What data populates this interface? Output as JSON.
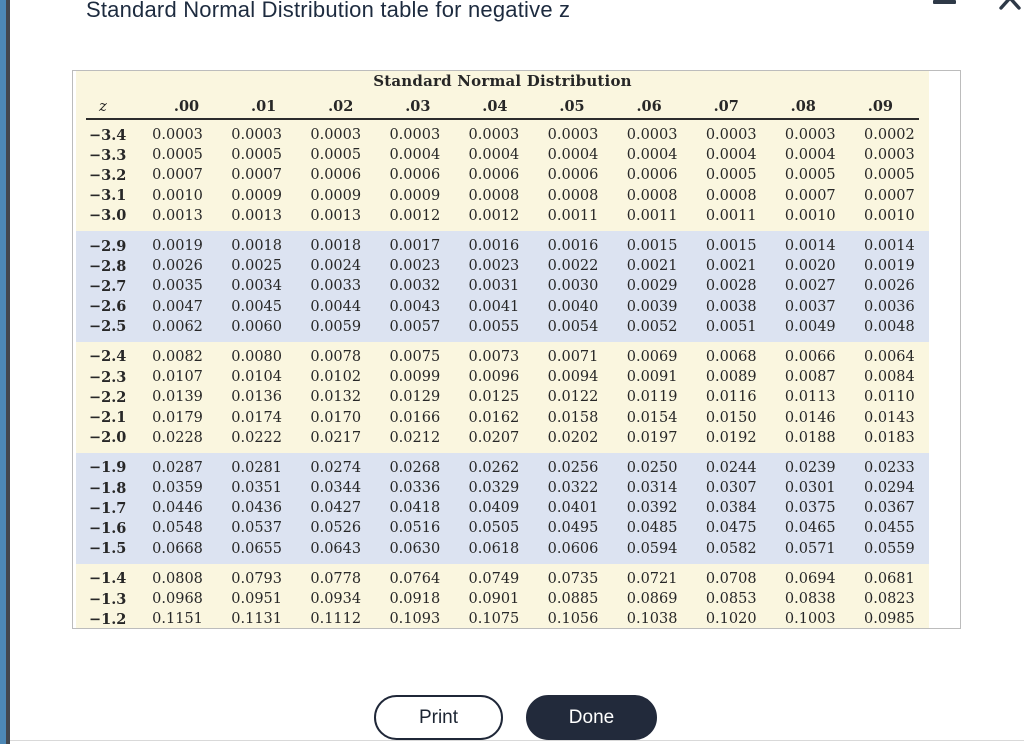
{
  "window": {
    "title": "Standard Normal Distribution table for negative z"
  },
  "buttons": {
    "print_label": "Print",
    "done_label": "Done"
  },
  "colors": {
    "accent_navy": "#222a3b",
    "table_cream": "#faf6df",
    "table_band_blue": "#dce3f1",
    "heading_navy": "#1d2b3f"
  },
  "table": {
    "title": "Standard Normal Distribution",
    "columns": [
      "z",
      ".00",
      ".01",
      ".02",
      ".03",
      ".04",
      ".05",
      ".06",
      ".07",
      ".08",
      ".09"
    ],
    "groups": [
      {
        "band": "cream",
        "rows": [
          {
            "z": "−3.4",
            "values": [
              "0.0003",
              "0.0003",
              "0.0003",
              "0.0003",
              "0.0003",
              "0.0003",
              "0.0003",
              "0.0003",
              "0.0003",
              "0.0002"
            ]
          },
          {
            "z": "−3.3",
            "values": [
              "0.0005",
              "0.0005",
              "0.0005",
              "0.0004",
              "0.0004",
              "0.0004",
              "0.0004",
              "0.0004",
              "0.0004",
              "0.0003"
            ]
          },
          {
            "z": "−3.2",
            "values": [
              "0.0007",
              "0.0007",
              "0.0006",
              "0.0006",
              "0.0006",
              "0.0006",
              "0.0006",
              "0.0005",
              "0.0005",
              "0.0005"
            ]
          },
          {
            "z": "−3.1",
            "values": [
              "0.0010",
              "0.0009",
              "0.0009",
              "0.0009",
              "0.0008",
              "0.0008",
              "0.0008",
              "0.0008",
              "0.0007",
              "0.0007"
            ]
          },
          {
            "z": "−3.0",
            "values": [
              "0.0013",
              "0.0013",
              "0.0013",
              "0.0012",
              "0.0012",
              "0.0011",
              "0.0011",
              "0.0011",
              "0.0010",
              "0.0010"
            ]
          }
        ]
      },
      {
        "band": "blue",
        "rows": [
          {
            "z": "−2.9",
            "values": [
              "0.0019",
              "0.0018",
              "0.0018",
              "0.0017",
              "0.0016",
              "0.0016",
              "0.0015",
              "0.0015",
              "0.0014",
              "0.0014"
            ]
          },
          {
            "z": "−2.8",
            "values": [
              "0.0026",
              "0.0025",
              "0.0024",
              "0.0023",
              "0.0023",
              "0.0022",
              "0.0021",
              "0.0021",
              "0.0020",
              "0.0019"
            ]
          },
          {
            "z": "−2.7",
            "values": [
              "0.0035",
              "0.0034",
              "0.0033",
              "0.0032",
              "0.0031",
              "0.0030",
              "0.0029",
              "0.0028",
              "0.0027",
              "0.0026"
            ]
          },
          {
            "z": "−2.6",
            "values": [
              "0.0047",
              "0.0045",
              "0.0044",
              "0.0043",
              "0.0041",
              "0.0040",
              "0.0039",
              "0.0038",
              "0.0037",
              "0.0036"
            ]
          },
          {
            "z": "−2.5",
            "values": [
              "0.0062",
              "0.0060",
              "0.0059",
              "0.0057",
              "0.0055",
              "0.0054",
              "0.0052",
              "0.0051",
              "0.0049",
              "0.0048"
            ]
          }
        ]
      },
      {
        "band": "cream",
        "rows": [
          {
            "z": "−2.4",
            "values": [
              "0.0082",
              "0.0080",
              "0.0078",
              "0.0075",
              "0.0073",
              "0.0071",
              "0.0069",
              "0.0068",
              "0.0066",
              "0.0064"
            ]
          },
          {
            "z": "−2.3",
            "values": [
              "0.0107",
              "0.0104",
              "0.0102",
              "0.0099",
              "0.0096",
              "0.0094",
              "0.0091",
              "0.0089",
              "0.0087",
              "0.0084"
            ]
          },
          {
            "z": "−2.2",
            "values": [
              "0.0139",
              "0.0136",
              "0.0132",
              "0.0129",
              "0.0125",
              "0.0122",
              "0.0119",
              "0.0116",
              "0.0113",
              "0.0110"
            ]
          },
          {
            "z": "−2.1",
            "values": [
              "0.0179",
              "0.0174",
              "0.0170",
              "0.0166",
              "0.0162",
              "0.0158",
              "0.0154",
              "0.0150",
              "0.0146",
              "0.0143"
            ]
          },
          {
            "z": "−2.0",
            "values": [
              "0.0228",
              "0.0222",
              "0.0217",
              "0.0212",
              "0.0207",
              "0.0202",
              "0.0197",
              "0.0192",
              "0.0188",
              "0.0183"
            ]
          }
        ]
      },
      {
        "band": "blue",
        "rows": [
          {
            "z": "−1.9",
            "values": [
              "0.0287",
              "0.0281",
              "0.0274",
              "0.0268",
              "0.0262",
              "0.0256",
              "0.0250",
              "0.0244",
              "0.0239",
              "0.0233"
            ]
          },
          {
            "z": "−1.8",
            "values": [
              "0.0359",
              "0.0351",
              "0.0344",
              "0.0336",
              "0.0329",
              "0.0322",
              "0.0314",
              "0.0307",
              "0.0301",
              "0.0294"
            ]
          },
          {
            "z": "−1.7",
            "values": [
              "0.0446",
              "0.0436",
              "0.0427",
              "0.0418",
              "0.0409",
              "0.0401",
              "0.0392",
              "0.0384",
              "0.0375",
              "0.0367"
            ]
          },
          {
            "z": "−1.6",
            "values": [
              "0.0548",
              "0.0537",
              "0.0526",
              "0.0516",
              "0.0505",
              "0.0495",
              "0.0485",
              "0.0475",
              "0.0465",
              "0.0455"
            ]
          },
          {
            "z": "−1.5",
            "values": [
              "0.0668",
              "0.0655",
              "0.0643",
              "0.0630",
              "0.0618",
              "0.0606",
              "0.0594",
              "0.0582",
              "0.0571",
              "0.0559"
            ]
          }
        ]
      },
      {
        "band": "cream",
        "rows": [
          {
            "z": "−1.4",
            "values": [
              "0.0808",
              "0.0793",
              "0.0778",
              "0.0764",
              "0.0749",
              "0.0735",
              "0.0721",
              "0.0708",
              "0.0694",
              "0.0681"
            ]
          },
          {
            "z": "−1.3",
            "values": [
              "0.0968",
              "0.0951",
              "0.0934",
              "0.0918",
              "0.0901",
              "0.0885",
              "0.0869",
              "0.0853",
              "0.0838",
              "0.0823"
            ]
          },
          {
            "z": "−1.2",
            "values": [
              "0.1151",
              "0.1131",
              "0.1112",
              "0.1093",
              "0.1075",
              "0.1056",
              "0.1038",
              "0.1020",
              "0.1003",
              "0.0985"
            ]
          }
        ]
      }
    ]
  }
}
